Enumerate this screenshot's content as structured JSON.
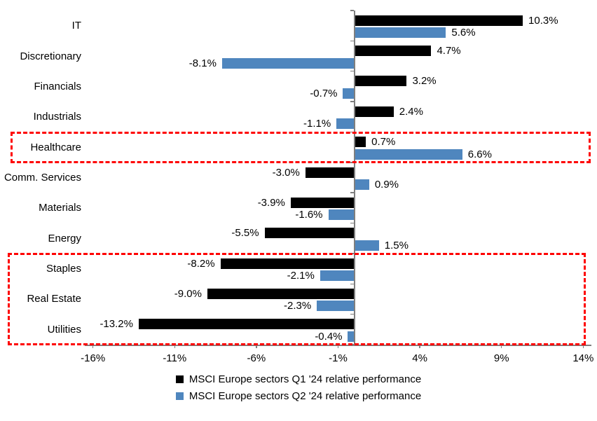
{
  "chart_data": {
    "type": "bar",
    "orientation": "horizontal",
    "categories": [
      "IT",
      "Discretionary",
      "Financials",
      "Industrials",
      "Healthcare",
      "Comm. Services",
      "Materials",
      "Energy",
      "Staples",
      "Real Estate",
      "Utilities"
    ],
    "series": [
      {
        "name": "MSCI Europe sectors Q1 '24 relative performance",
        "color": "#000000",
        "values": [
          10.3,
          4.7,
          3.2,
          2.4,
          0.7,
          -3.0,
          -3.9,
          -5.5,
          -8.2,
          -9.0,
          -13.2
        ],
        "labels": [
          "10.3%",
          "4.7%",
          "3.2%",
          "2.4%",
          "0.7%",
          "-3.0%",
          "-3.9%",
          "-5.5%",
          "-8.2%",
          "-9.0%",
          "-13.2%"
        ]
      },
      {
        "name": "MSCI Europe sectors Q2 '24 relative performance",
        "color": "#4f86be",
        "values": [
          5.6,
          -8.1,
          -0.7,
          -1.1,
          6.6,
          0.9,
          -1.6,
          1.5,
          -2.1,
          -2.3,
          -0.4
        ],
        "labels": [
          "5.6%",
          "-8.1%",
          "-0.7%",
          "-1.1%",
          "6.6%",
          "0.9%",
          "-1.6%",
          "1.5%",
          "-2.1%",
          "-2.3%",
          "-0.4%"
        ]
      }
    ],
    "x_axis": {
      "tick_labels": [
        "-16%",
        "-11%",
        "-6%",
        "-1%",
        "4%",
        "9%",
        "14%"
      ],
      "tick_values": [
        -16,
        -11,
        -6,
        -1,
        4,
        9,
        14
      ],
      "min": -16.5,
      "max": 14.5
    },
    "grid": false,
    "legend_position": "bottom",
    "highlight_color": "#fe0000",
    "highlight_boxes": [
      {
        "row_start": 4,
        "row_end": 4
      },
      {
        "row_start": 8,
        "row_end": 10
      }
    ]
  }
}
